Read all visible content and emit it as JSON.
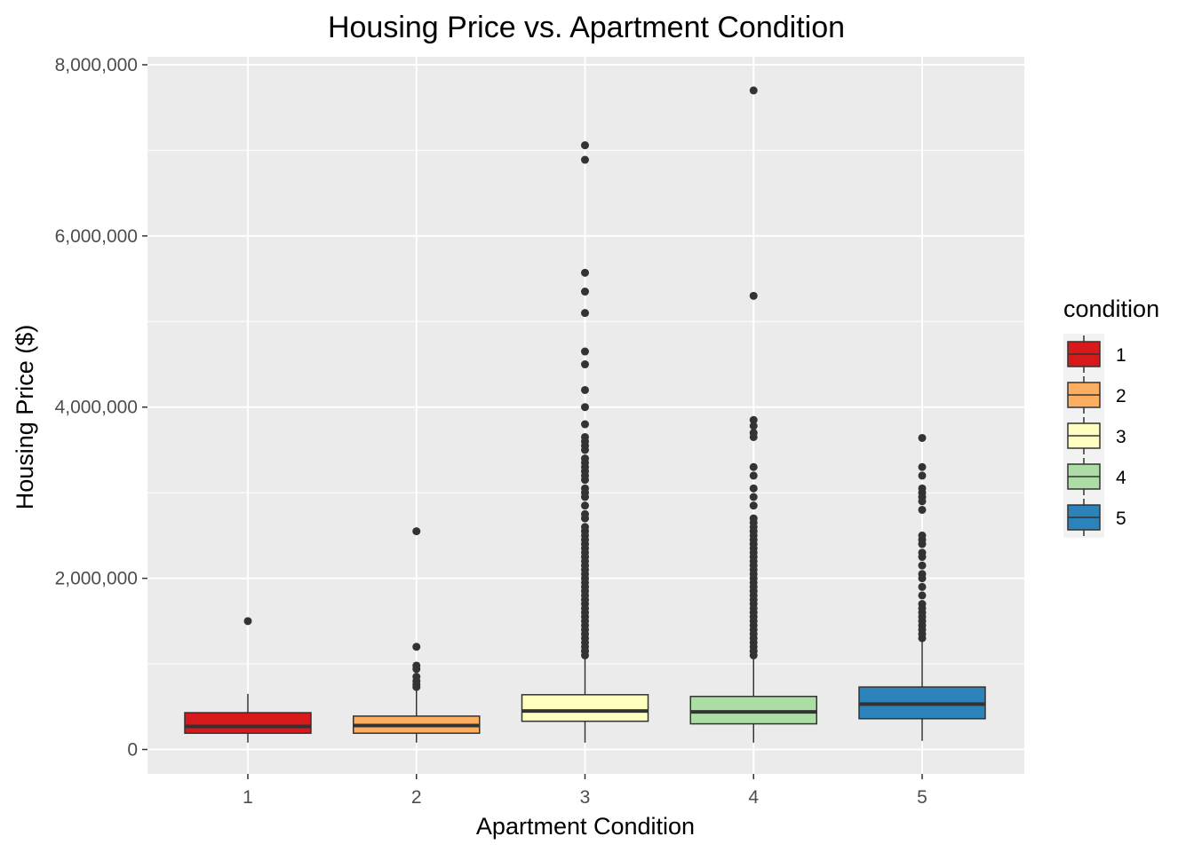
{
  "chart_data": {
    "type": "box",
    "title": "Housing Price vs. Apartment Condition",
    "xlabel": "Apartment Condition",
    "ylabel": "Housing Price ($)",
    "categories": [
      "1",
      "2",
      "3",
      "4",
      "5"
    ],
    "ylim": [
      -300000,
      8000000
    ],
    "yticks": [
      0,
      2000000,
      4000000,
      6000000,
      8000000
    ],
    "ytick_labels": [
      "0",
      "2,000,000",
      "4,000,000",
      "6,000,000",
      "8,000,000"
    ],
    "grid": true,
    "panel_background": "#ebebeb",
    "legend": {
      "title": "condition",
      "placement": "right",
      "entries": [
        "1",
        "2",
        "3",
        "4",
        "5"
      ]
    },
    "boxes": [
      {
        "category": "1",
        "color": "#d7191c",
        "whisker_low": 80000,
        "q1": 190000,
        "median": 270000,
        "q3": 430000,
        "whisker_high": 650000,
        "outliers": [
          1500000
        ]
      },
      {
        "category": "2",
        "color": "#fdae61",
        "whisker_low": 80000,
        "q1": 190000,
        "median": 280000,
        "q3": 390000,
        "whisker_high": 700000,
        "outliers": [
          730000,
          760000,
          800000,
          850000,
          940000,
          980000,
          1200000,
          2550000
        ]
      },
      {
        "category": "3",
        "color": "#ffffbf",
        "whisker_low": 80000,
        "q1": 330000,
        "median": 450000,
        "q3": 640000,
        "whisker_high": 1100000,
        "outliers": [
          1100000,
          1150000,
          1200000,
          1250000,
          1300000,
          1350000,
          1400000,
          1450000,
          1500000,
          1550000,
          1600000,
          1650000,
          1700000,
          1750000,
          1800000,
          1850000,
          1900000,
          1950000,
          2000000,
          2050000,
          2100000,
          2150000,
          2200000,
          2250000,
          2300000,
          2350000,
          2400000,
          2450000,
          2500000,
          2550000,
          2600000,
          2700000,
          2750000,
          2850000,
          2950000,
          3000000,
          3050000,
          3150000,
          3200000,
          3250000,
          3300000,
          3350000,
          3400000,
          3500000,
          3550000,
          3600000,
          3650000,
          3800000,
          4000000,
          4200000,
          4500000,
          4650000,
          5100000,
          5350000,
          5570000,
          6890000,
          7060000
        ]
      },
      {
        "category": "4",
        "color": "#abdda4",
        "whisker_low": 80000,
        "q1": 300000,
        "median": 440000,
        "q3": 620000,
        "whisker_high": 1100000,
        "outliers": [
          1100000,
          1150000,
          1200000,
          1250000,
          1300000,
          1350000,
          1400000,
          1450000,
          1500000,
          1550000,
          1600000,
          1650000,
          1700000,
          1750000,
          1800000,
          1850000,
          1900000,
          1950000,
          2000000,
          2050000,
          2100000,
          2150000,
          2200000,
          2250000,
          2300000,
          2350000,
          2400000,
          2450000,
          2500000,
          2550000,
          2600000,
          2650000,
          2700000,
          2850000,
          2950000,
          3050000,
          3200000,
          3300000,
          3650000,
          3700000,
          3780000,
          3850000,
          5300000,
          7700000
        ]
      },
      {
        "category": "5",
        "color": "#2b83ba",
        "whisker_low": 100000,
        "q1": 360000,
        "median": 530000,
        "q3": 730000,
        "whisker_high": 1280000,
        "outliers": [
          1300000,
          1350000,
          1400000,
          1450000,
          1500000,
          1550000,
          1600000,
          1650000,
          1700000,
          1800000,
          1900000,
          2000000,
          2050000,
          2150000,
          2250000,
          2300000,
          2400000,
          2450000,
          2500000,
          2800000,
          2900000,
          2950000,
          3000000,
          3050000,
          3200000,
          3300000,
          3640000
        ]
      }
    ]
  }
}
